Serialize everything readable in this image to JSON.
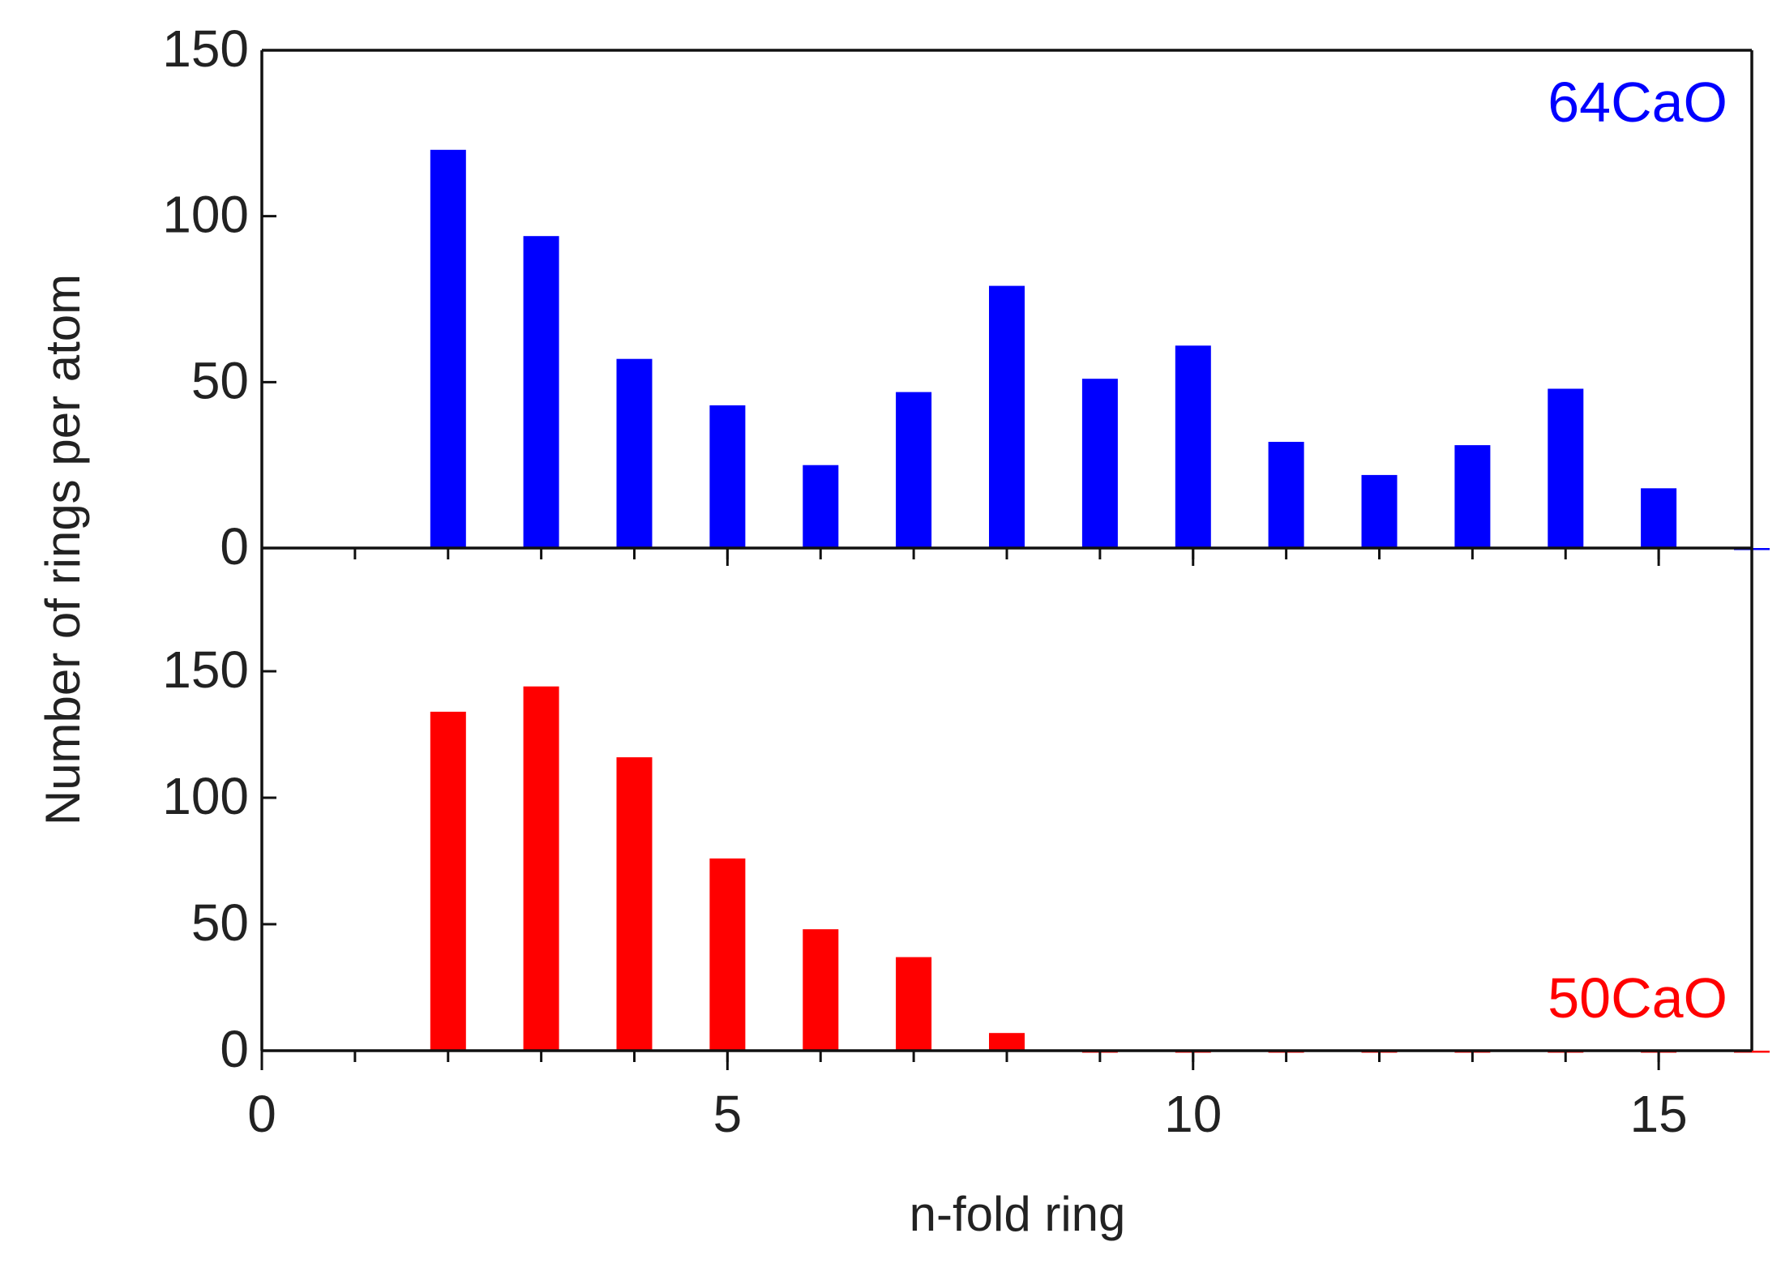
{
  "chart_data": [
    {
      "type": "bar",
      "panel": "top",
      "annotation": "64CaO",
      "x": [
        2,
        3,
        4,
        5,
        6,
        7,
        8,
        9,
        10,
        11,
        12,
        13,
        14,
        15,
        16
      ],
      "series": [
        {
          "values": [
            120,
            94,
            57,
            43,
            25,
            47,
            79,
            51,
            61,
            32,
            22,
            31,
            48,
            18,
            0
          ]
        }
      ],
      "ylim": [
        0,
        150
      ],
      "yticks": [
        0,
        50,
        100,
        150
      ],
      "color": "#0000ff"
    },
    {
      "type": "bar",
      "panel": "bottom",
      "annotation": "50CaO",
      "x": [
        2,
        3,
        4,
        5,
        6,
        7,
        8,
        9,
        10,
        11,
        12,
        13,
        14,
        15,
        16
      ],
      "series": [
        {
          "values": [
            134,
            144,
            116,
            76,
            48,
            37,
            7,
            0,
            0,
            0,
            0,
            0,
            0,
            0,
            0
          ]
        }
      ],
      "ylim": [
        0,
        200
      ],
      "yticks": [
        0,
        50,
        100,
        150
      ],
      "color": "#ff0000"
    }
  ],
  "xaxis": {
    "label": "n-fold ring",
    "xlim": [
      0,
      16
    ],
    "ticks": [
      0,
      5,
      10,
      15
    ],
    "minor_step": 1
  },
  "ylabel": "Number of rings per atom"
}
